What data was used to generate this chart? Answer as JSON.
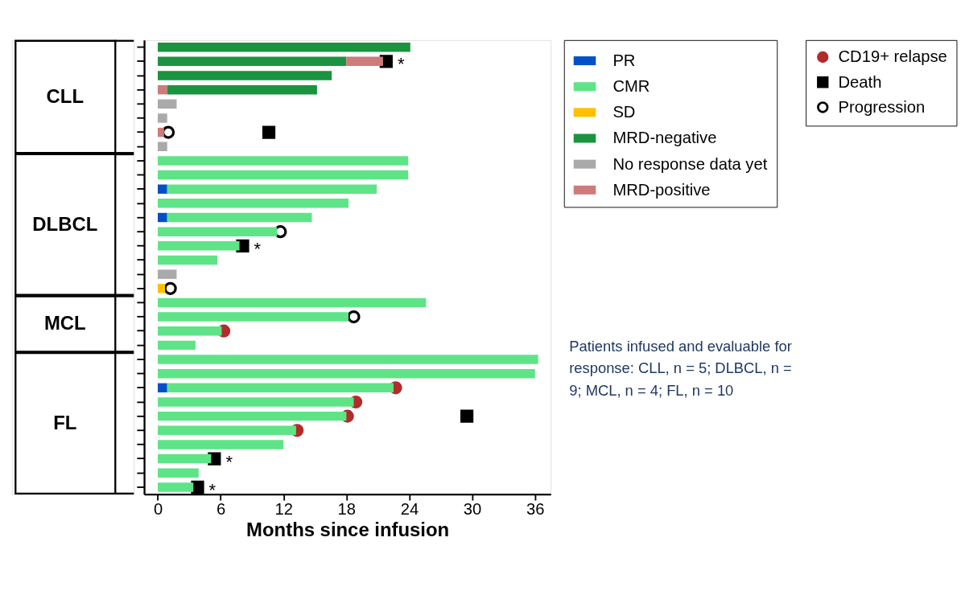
{
  "chart_data": {
    "type": "bar",
    "orientation": "horizontal",
    "stacked": true,
    "xlabel": "Months since infusion",
    "xlim": [
      -1.3,
      37.5
    ],
    "xticks": [
      0,
      6,
      12,
      18,
      24,
      30,
      36
    ],
    "grid": false,
    "legend": "right",
    "tick_labels": "x",
    "categories": [
      null,
      null,
      null,
      null,
      null,
      null,
      null,
      null,
      null,
      null,
      null,
      null,
      null,
      null,
      null,
      null,
      null,
      null,
      null,
      null,
      null,
      null,
      null,
      null,
      null,
      null,
      null,
      null,
      null,
      null,
      null,
      null
    ],
    "series": [
      {
        "name": "PR",
        "color": "#0050c8",
        "values": [
          null,
          null,
          null,
          null,
          null,
          null,
          null,
          null,
          null,
          null,
          0.9,
          null,
          0.9,
          null,
          null,
          null,
          null,
          null,
          null,
          null,
          null,
          null,
          null,
          null,
          0.9,
          null,
          null,
          null,
          null,
          null,
          null,
          null
        ]
      },
      {
        "name": "CMR",
        "color": "#5ee487",
        "values": [
          null,
          null,
          null,
          null,
          null,
          null,
          null,
          null,
          23.9,
          23.9,
          20.0,
          18.2,
          13.8,
          11.4,
          7.8,
          5.7,
          null,
          null,
          25.6,
          18.2,
          6.1,
          3.6,
          36.3,
          36.0,
          21.6,
          18.7,
          18.0,
          13.2,
          12.0,
          5.1,
          3.9,
          3.4
        ]
      },
      {
        "name": "SD",
        "color": "#ffc000",
        "values": [
          null,
          null,
          null,
          null,
          null,
          null,
          null,
          null,
          null,
          null,
          null,
          null,
          null,
          null,
          null,
          null,
          null,
          0.7,
          null,
          null,
          null,
          null,
          null,
          null,
          null,
          null,
          null,
          null,
          null,
          null,
          null,
          null
        ]
      },
      {
        "color": "#cd7b7b",
        "values": [
          null,
          null,
          null,
          0.9,
          null,
          null,
          0.6,
          null,
          null,
          null,
          null,
          null,
          null,
          null,
          null,
          null,
          null,
          null,
          null,
          null,
          null,
          null,
          null,
          null,
          null,
          null,
          null,
          null,
          null,
          null,
          null,
          null
        ]
      },
      {
        "name": "MRD-negative",
        "color": "#1a943e",
        "values": [
          24.1,
          18.0,
          16.6,
          14.3,
          null,
          null,
          null,
          null,
          null,
          null,
          null,
          null,
          null,
          null,
          null,
          null,
          null,
          null,
          null,
          null,
          null,
          null,
          null,
          null,
          null,
          null,
          null,
          null,
          null,
          null,
          null,
          null
        ]
      },
      {
        "name": "No response data yet",
        "color": "#aaaaaa",
        "values": [
          null,
          null,
          null,
          null,
          1.8,
          0.9,
          null,
          0.9,
          null,
          null,
          null,
          null,
          null,
          null,
          null,
          null,
          1.8,
          null,
          null,
          null,
          null,
          null,
          null,
          null,
          null,
          null,
          null,
          null,
          null,
          null,
          null,
          null
        ]
      },
      {
        "name": "MRD-positive",
        "color": "#cd7b7b",
        "values": [
          null,
          3.5,
          null,
          null,
          null,
          null,
          null,
          null,
          null,
          null,
          null,
          null,
          null,
          null,
          null,
          null,
          null,
          null,
          null,
          null,
          null,
          null,
          null,
          null,
          null,
          null,
          null,
          null,
          null,
          null,
          null,
          null
        ]
      },
      {
        "name": "CD19+ relapse",
        "type": "scatter",
        "marker": "circle",
        "color": "#b22c2c",
        "values": [
          null,
          null,
          null,
          null,
          null,
          null,
          null,
          null,
          null,
          null,
          null,
          null,
          null,
          null,
          null,
          null,
          null,
          null,
          null,
          null,
          6.3,
          null,
          null,
          null,
          22.7,
          18.9,
          18.1,
          13.3,
          null,
          null,
          null,
          null
        ]
      },
      {
        "name": "Death",
        "type": "scatter",
        "marker": "square",
        "color": "#000000",
        "values": [
          null,
          21.8,
          null,
          null,
          null,
          null,
          10.6,
          null,
          null,
          null,
          null,
          null,
          null,
          null,
          8.1,
          null,
          null,
          null,
          null,
          null,
          null,
          null,
          null,
          null,
          null,
          null,
          29.5,
          null,
          null,
          5.4,
          null,
          3.8
        ],
        "value_labels": [
          null,
          "*",
          null,
          null,
          null,
          null,
          null,
          null,
          null,
          null,
          null,
          null,
          null,
          null,
          "*",
          null,
          null,
          null,
          null,
          null,
          null,
          null,
          null,
          null,
          null,
          null,
          null,
          null,
          null,
          "*",
          null,
          "*"
        ]
      },
      {
        "name": "Progression",
        "type": "scatter",
        "marker": "circle",
        "color": "#000000",
        "values": [
          null,
          null,
          null,
          null,
          null,
          null,
          1.0,
          null,
          null,
          null,
          null,
          null,
          null,
          11.7,
          null,
          null,
          null,
          1.2,
          null,
          18.7,
          null,
          null,
          null,
          null,
          null,
          null,
          null,
          null,
          null,
          null,
          null,
          null
        ]
      }
    ],
    "annotations": [
      "CLL",
      "DLBCL",
      "MCL",
      "FL",
      "Patients infused and evaluable for response: CLL, n = 5; DLBCL, n = 9; MCL, n = 4; FL, n = 10"
    ]
  }
}
